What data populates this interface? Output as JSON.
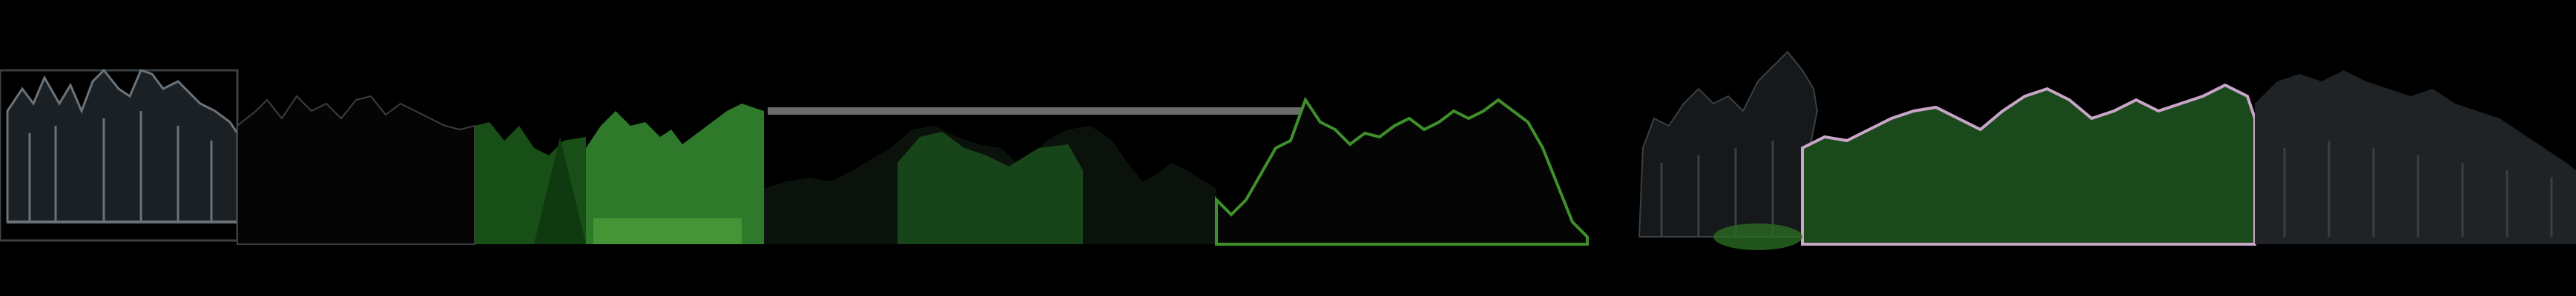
{
  "image": {
    "description_kind": "treeline-silhouette-strip",
    "background_color": "#000000",
    "panels": [
      {
        "name": "panel-gray-outline-conifers",
        "tone": "gray-outline"
      },
      {
        "name": "panel-black-conifers",
        "tone": "black"
      },
      {
        "name": "panel-green-conifers",
        "tone": "green"
      },
      {
        "name": "panel-dark-bushes",
        "tone": "dark-green"
      },
      {
        "name": "panel-green-edged-black",
        "tone": "black-green-edge"
      },
      {
        "name": "panel-sparse-dark-conifers",
        "tone": "dark-gray"
      },
      {
        "name": "panel-pink-edged-green",
        "tone": "green-pink-edge"
      },
      {
        "name": "panel-gray-mixed-forest",
        "tone": "gray"
      }
    ],
    "colors": {
      "gray_outline": "#6c7378",
      "gray_fill": "#2c3236",
      "black": "#050505",
      "green_bright": "#2f7a2a",
      "green_dark": "#174f17",
      "green_light": "#4d9b3a",
      "green_edge": "#3f8f2b",
      "pink_edge": "#c9a6c8",
      "gray_forest": "#1f2326",
      "gray_ground": "#3a3f42"
    }
  }
}
